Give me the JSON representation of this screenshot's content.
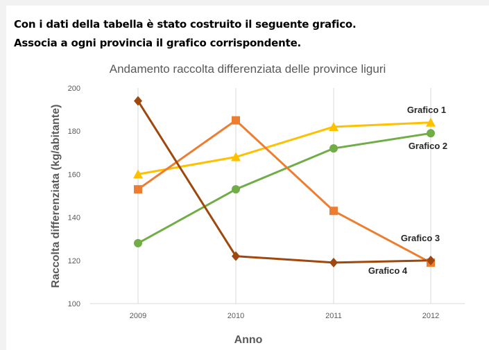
{
  "exercise": {
    "line1": "Con i dati della tabella è stato costruito il seguente grafico.",
    "line2": "Associa a ogni provincia il grafico corrispondente."
  },
  "chart_data": {
    "type": "line",
    "title": "Andamento raccolta differenziata delle province liguri",
    "xlabel": "Anno",
    "ylabel": "Raccolta differenziata (kg/abitante)",
    "x": [
      "2009",
      "2010",
      "2011",
      "2012"
    ],
    "ylim": [
      100,
      200
    ],
    "yticks": [
      100,
      120,
      140,
      160,
      180,
      200
    ],
    "grid": "vertical",
    "series": [
      {
        "name": "Grafico 1",
        "color": "#ffc000",
        "marker": "triangle",
        "values": [
          160,
          168,
          182,
          184
        ]
      },
      {
        "name": "Grafico 2",
        "color": "#70ad47",
        "marker": "circle",
        "values": [
          128,
          153,
          172,
          179
        ]
      },
      {
        "name": "Grafico 3",
        "color": "#ed7d31",
        "marker": "square",
        "values": [
          153,
          185,
          143,
          119
        ]
      },
      {
        "name": "Grafico 4",
        "color": "#9e480e",
        "marker": "diamond",
        "values": [
          194,
          122,
          119,
          120
        ]
      }
    ]
  }
}
